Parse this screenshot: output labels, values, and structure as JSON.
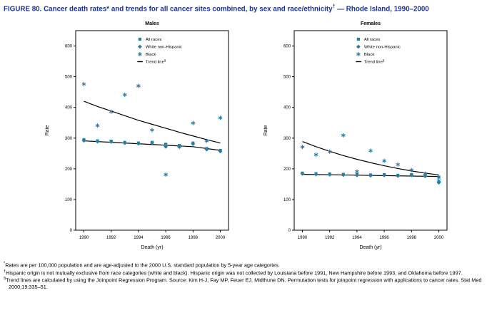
{
  "title": {
    "main": "FIGURE 80. Cancer death rates* and trends for all cancer sites combined, by sex and race/ethnicity",
    "sup": "†",
    "tail": " — Rhode Island, 1990–2000"
  },
  "colors": {
    "accent": "#2a7da3",
    "title_text": "#1c3490",
    "trend_line": "#000000"
  },
  "footnotes": [
    {
      "marker": "*",
      "text": "Rates are per 100,000 population and are age-adjusted to the 2000 U.S. standard population by 5-year age categories."
    },
    {
      "marker": "†",
      "text": "Hispanic origin is not mutually exclusive from race categories (white and black). Hispanic origin was not collected by Louisiana before 1991, New Hampshire before 1993, and Oklahoma before 1997."
    },
    {
      "marker": "§",
      "text": "Trend lines are calculated by using the Joinpoint Regression Program. Source: Kim H-J, Fay MP, Feuer EJ, Midthune DN. Permutation tests for joinpoint regression with applications to cancer rates. Stat Med 2000;19:335–51."
    }
  ],
  "chart_data": [
    {
      "type": "scatter",
      "title": "Males",
      "xlabel": "Death (yr)",
      "ylabel": "Rate",
      "xlim": [
        1989.4,
        2000.6
      ],
      "ylim": [
        0,
        650
      ],
      "xticks": [
        1990,
        1992,
        1994,
        1996,
        1998,
        2000
      ],
      "yticks": [
        0,
        100,
        200,
        300,
        400,
        500,
        600
      ],
      "x": [
        1990,
        1991,
        1992,
        1993,
        1994,
        1995,
        1996,
        1997,
        1998,
        1999,
        2000
      ],
      "series": [
        {
          "name": "All races",
          "marker": "square",
          "values": [
            295,
            291,
            290,
            286,
            284,
            286,
            280,
            276,
            284,
            266,
            260
          ]
        },
        {
          "name": "White non-Hispanic",
          "marker": "diamond",
          "values": [
            292,
            289,
            288,
            284,
            282,
            284,
            272,
            273,
            281,
            263,
            257
          ]
        },
        {
          "name": "Black",
          "marker": "asterisk",
          "values": [
            476,
            341,
            386,
            441,
            470,
            326,
            181,
            271,
            349,
            291,
            366
          ]
        }
      ],
      "trend_lines": [
        {
          "name": "Black trend line",
          "points": [
            [
              1990,
              420
            ],
            [
              1991,
              403
            ],
            [
              1992,
              388
            ],
            [
              1993,
              373
            ],
            [
              1994,
              358
            ],
            [
              1995,
              345
            ],
            [
              1996,
              332
            ],
            [
              1997,
              319
            ],
            [
              1998,
              307
            ],
            [
              1999,
              295
            ],
            [
              2000,
              284
            ]
          ]
        },
        {
          "name": "All races trend line",
          "points": [
            [
              1990,
              291
            ],
            [
              1998,
              272
            ],
            [
              2000,
              260
            ]
          ]
        }
      ],
      "legend": [
        {
          "label": "All races",
          "marker": "square"
        },
        {
          "label": "White non-Hispanic",
          "marker": "diamond"
        },
        {
          "label": "Black",
          "marker": "asterisk"
        },
        {
          "label": "Trend line",
          "sup": "§",
          "marker": "dash"
        }
      ]
    },
    {
      "type": "scatter",
      "title": "Females",
      "xlabel": "Death (yr)",
      "ylabel": "Rate",
      "xlim": [
        1989.4,
        2000.6
      ],
      "ylim": [
        0,
        650
      ],
      "xticks": [
        1990,
        1992,
        1994,
        1996,
        1998,
        2000
      ],
      "yticks": [
        0,
        100,
        200,
        300,
        400,
        500,
        600
      ],
      "x": [
        1990,
        1991,
        1992,
        1993,
        1994,
        1995,
        1996,
        1997,
        1998,
        1999,
        2000
      ],
      "series": [
        {
          "name": "All races",
          "marker": "square",
          "values": [
            186,
            184,
            183,
            182,
            181,
            180,
            181,
            179,
            181,
            178,
            173
          ]
        },
        {
          "name": "White non-Hispanic",
          "marker": "diamond",
          "values": [
            184,
            182,
            181,
            180,
            179,
            178,
            179,
            177,
            179,
            176,
            155
          ]
        },
        {
          "name": "Black",
          "marker": "asterisk",
          "values": [
            271,
            246,
            256,
            309,
            191,
            259,
            226,
            214,
            196,
            184,
            161
          ]
        }
      ],
      "trend_lines": [
        {
          "name": "Black trend line",
          "points": [
            [
              1990,
              289
            ],
            [
              1991,
              272
            ],
            [
              1992,
              257
            ],
            [
              1993,
              243
            ],
            [
              1994,
              231
            ],
            [
              1995,
              220
            ],
            [
              1996,
              210
            ],
            [
              1997,
              201
            ],
            [
              1998,
              193
            ],
            [
              1999,
              186
            ],
            [
              2000,
              180
            ]
          ]
        },
        {
          "name": "All races trend line",
          "points": [
            [
              1990,
              182
            ],
            [
              2000,
              175
            ]
          ]
        }
      ],
      "legend": [
        {
          "label": "All races",
          "marker": "square"
        },
        {
          "label": "White non-Hispanic",
          "marker": "diamond"
        },
        {
          "label": "Black",
          "marker": "asterisk"
        },
        {
          "label": "Trend line",
          "sup": "§",
          "marker": "dash"
        }
      ]
    }
  ]
}
